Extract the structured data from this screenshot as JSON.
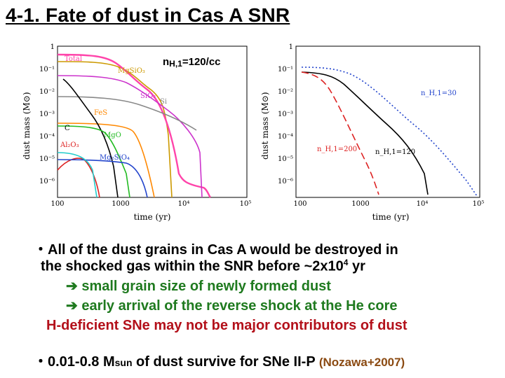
{
  "title": "4-1. Fate of dust in Cas A SNR",
  "figure": {
    "density_label": "n",
    "density_sub": "H,1",
    "density_value": "=120/cc",
    "left_panel": {
      "ylabel": "dust mass (M⊙)",
      "xlabel": "time (yr)",
      "yticks": [
        "1",
        "10⁻¹",
        "10⁻²",
        "10⁻³",
        "10⁻⁴",
        "10⁻⁵",
        "10⁻⁶"
      ],
      "xticks": [
        "100",
        "1000",
        "10⁴",
        "10⁵"
      ],
      "species": [
        "Total",
        "MgSiO₃",
        "SiO₂",
        "Si",
        "FeS",
        "C",
        "MgO",
        "Al₂O₃",
        "Mg₂SiO₄"
      ],
      "colors": {
        "Total": "#ff44aa",
        "MgSiO3": "#cc9900",
        "SiO2": "#cc33cc",
        "Si": "#888888",
        "FeS": "#ff8800",
        "C": "#000000",
        "MgO": "#22bb22",
        "Al2O3": "#dd2222",
        "Mg2SiO4": "#2244cc",
        "cyan": "#22cccc"
      }
    },
    "right_panel": {
      "ylabel": "dust mass (M⊙)",
      "xlabel": "time (yr)",
      "yticks": [
        "1",
        "10⁻¹",
        "10⁻²",
        "10⁻³",
        "10⁻⁴",
        "10⁻⁵",
        "10⁻⁶"
      ],
      "xticks": [
        "100",
        "1000",
        "10⁴",
        "10⁵"
      ],
      "series_labels": [
        "n_H,1=30",
        "n_H,1=200",
        "n_H,1=120"
      ],
      "colors": {
        "n30": "#2244cc",
        "n200": "#dd2222",
        "n120": "#000000"
      }
    }
  },
  "bullets": {
    "b1_line1": "・All of the dust grains in Cas A would be destroyed in",
    "b1_line2_pre": "the shocked gas within the SNR before ~2x10",
    "b1_line2_sup": "4",
    "b1_line2_post": " yr",
    "arrow": "➔",
    "sub1": " small grain size of newly formed dust",
    "sub2": " early arrival of the reverse shock at the He core",
    "conclusion": "H-deficient SNe may not be major contributors of dust",
    "b2_pre": "・0.01-0.8 M",
    "b2_sub": "sun",
    "b2_post": " of dust survive for SNe II-P ",
    "citation": "(Nozawa+2007)"
  }
}
